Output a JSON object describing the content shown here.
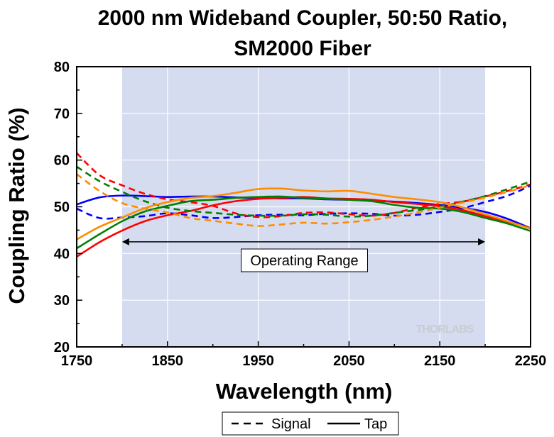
{
  "chart_data": {
    "type": "line",
    "title_line1": "2000 nm Wideband Coupler, 50:50 Ratio,",
    "title_line2": "SM2000 Fiber",
    "xlabel": "Wavelength (nm)",
    "ylabel": "Coupling Ratio (%)",
    "xlim": [
      1750,
      2250
    ],
    "ylim": [
      20,
      80
    ],
    "x_ticks": [
      1750,
      1850,
      1950,
      2050,
      2150,
      2250
    ],
    "y_ticks": [
      20,
      30,
      40,
      50,
      60,
      70,
      80
    ],
    "grid": true,
    "shaded_region": {
      "x_start": 1800,
      "x_end": 2200,
      "color": "#d6dcf0"
    },
    "annotation": {
      "text": "Operating Range",
      "x_start": 1800,
      "x_end": 2200,
      "y": 42.5
    },
    "watermark": "THORLABS",
    "legend": {
      "placement": "bottom-center",
      "entries": [
        {
          "label": "Signal",
          "style": "dashed"
        },
        {
          "label": "Tap",
          "style": "solid"
        }
      ]
    },
    "x": [
      1750,
      1775,
      1800,
      1825,
      1850,
      1875,
      1900,
      1925,
      1950,
      1975,
      2000,
      2025,
      2050,
      2075,
      2100,
      2125,
      2150,
      2175,
      2200,
      2225,
      2250
    ],
    "series": [
      {
        "color": "#0000ff",
        "style": "solid",
        "values": [
          50.5,
          52.0,
          52.4,
          52.3,
          52.1,
          52.2,
          52.2,
          52.0,
          51.9,
          51.8,
          51.8,
          51.6,
          51.5,
          51.3,
          51.1,
          50.8,
          50.4,
          49.8,
          48.9,
          47.4,
          45.4
        ]
      },
      {
        "color": "#0000ff",
        "style": "dashed",
        "values": [
          49.6,
          47.6,
          47.7,
          48.0,
          48.6,
          48.2,
          47.6,
          47.8,
          48.2,
          48.3,
          48.2,
          48.5,
          48.6,
          48.5,
          48.1,
          48.3,
          48.9,
          49.7,
          51.0,
          52.4,
          54.5
        ]
      },
      {
        "color": "#ff0000",
        "style": "solid",
        "values": [
          39.3,
          42.4,
          44.9,
          46.9,
          48.2,
          49.1,
          50.3,
          51.2,
          51.7,
          51.9,
          52.1,
          51.8,
          51.7,
          51.5,
          51.0,
          50.6,
          50.1,
          49.3,
          48.0,
          46.8,
          45.4
        ]
      },
      {
        "color": "#ff0000",
        "style": "dashed",
        "values": [
          61.5,
          56.8,
          54.6,
          52.8,
          51.6,
          51.0,
          50.2,
          48.6,
          47.8,
          48.0,
          48.7,
          48.8,
          48.4,
          48.1,
          48.7,
          49.8,
          50.6,
          51.1,
          52.2,
          53.4,
          54.8
        ]
      },
      {
        "color": "#008000",
        "style": "solid",
        "values": [
          41.1,
          44.1,
          46.9,
          49.0,
          50.2,
          51.2,
          51.5,
          51.9,
          52.1,
          52.2,
          51.9,
          51.7,
          51.5,
          51.2,
          50.4,
          49.8,
          49.6,
          48.9,
          47.6,
          46.4,
          44.8
        ]
      },
      {
        "color": "#008000",
        "style": "dashed",
        "values": [
          58.6,
          55.5,
          53.2,
          51.2,
          49.8,
          49.1,
          48.7,
          48.3,
          48.1,
          48.1,
          48.4,
          48.3,
          47.9,
          48.1,
          48.7,
          49.3,
          50.0,
          51.1,
          52.3,
          53.8,
          55.4
        ]
      },
      {
        "color": "#ff8c00",
        "style": "solid",
        "values": [
          43.0,
          45.7,
          47.7,
          49.7,
          51.0,
          51.9,
          52.3,
          53.0,
          53.8,
          53.9,
          53.5,
          53.3,
          53.4,
          52.8,
          52.1,
          51.6,
          51.0,
          49.9,
          48.4,
          46.9,
          45.3
        ]
      },
      {
        "color": "#ff8c00",
        "style": "dashed",
        "values": [
          57.0,
          53.4,
          50.8,
          49.6,
          48.8,
          47.6,
          47.0,
          46.4,
          45.9,
          46.2,
          46.6,
          46.4,
          46.7,
          47.2,
          47.9,
          48.8,
          49.8,
          50.9,
          52.0,
          53.2,
          54.6
        ]
      }
    ]
  }
}
